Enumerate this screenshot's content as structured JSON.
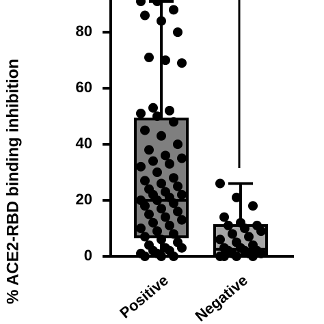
{
  "chart_data": {
    "type": "box",
    "y_label": "% ACE2-RBD binding inhibition",
    "categories": [
      "Positive",
      "Negative"
    ],
    "ylim": [
      0,
      91.5
    ],
    "yticks": [
      0,
      20,
      40,
      60,
      80
    ],
    "boxes": [
      {
        "color": "#7f7f7f",
        "min": 0,
        "q1": 7,
        "median": 20,
        "q3": 49,
        "max": 91,
        "points": [
          91,
          91,
          88,
          86,
          84,
          80,
          71,
          70,
          69,
          53,
          52,
          51,
          50,
          48,
          45,
          43,
          40,
          38,
          36,
          35,
          34,
          33,
          32,
          30,
          28,
          27,
          26,
          25,
          24,
          23,
          22,
          22,
          21,
          20,
          20,
          19,
          18,
          17,
          16,
          15,
          14,
          13,
          12,
          11,
          10,
          9,
          8,
          7,
          6,
          5,
          4,
          3,
          3,
          2,
          2,
          1,
          1,
          0,
          0,
          0
        ]
      },
      {
        "color": "#a6a6a6",
        "min": 0,
        "q1": 0.5,
        "median": 2.5,
        "q3": 11,
        "max": 26,
        "points": [
          26,
          21,
          18,
          14,
          12,
          11,
          11,
          10,
          9,
          8,
          7,
          6,
          5,
          4,
          3,
          3,
          2,
          2,
          2,
          1,
          1,
          1,
          0,
          0,
          0,
          0
        ]
      }
    ]
  }
}
